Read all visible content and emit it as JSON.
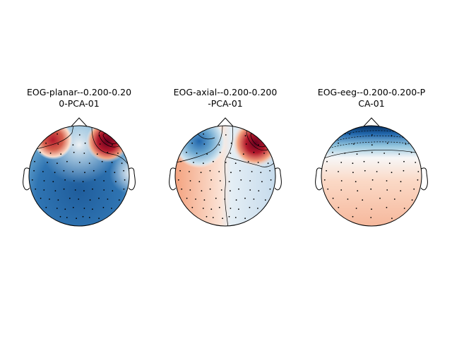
{
  "figure": {
    "panels": [
      {
        "title_line1": "EOG-planar--0.200-0.20",
        "title_line2": "0-PCA-01",
        "pattern": "planar"
      },
      {
        "title_line1": "EOG-axial--0.200-0.200",
        "title_line2": "-PCA-01",
        "pattern": "axial"
      },
      {
        "title_line1": "EOG-eeg--0.200-0.200-P",
        "title_line2": "CA-01",
        "pattern": "eeg"
      }
    ],
    "colormap": "RdBu_r",
    "colors": {
      "red": "#67001f",
      "white": "#f7f7f7",
      "blue": "#053061",
      "outline": "#000000"
    }
  }
}
